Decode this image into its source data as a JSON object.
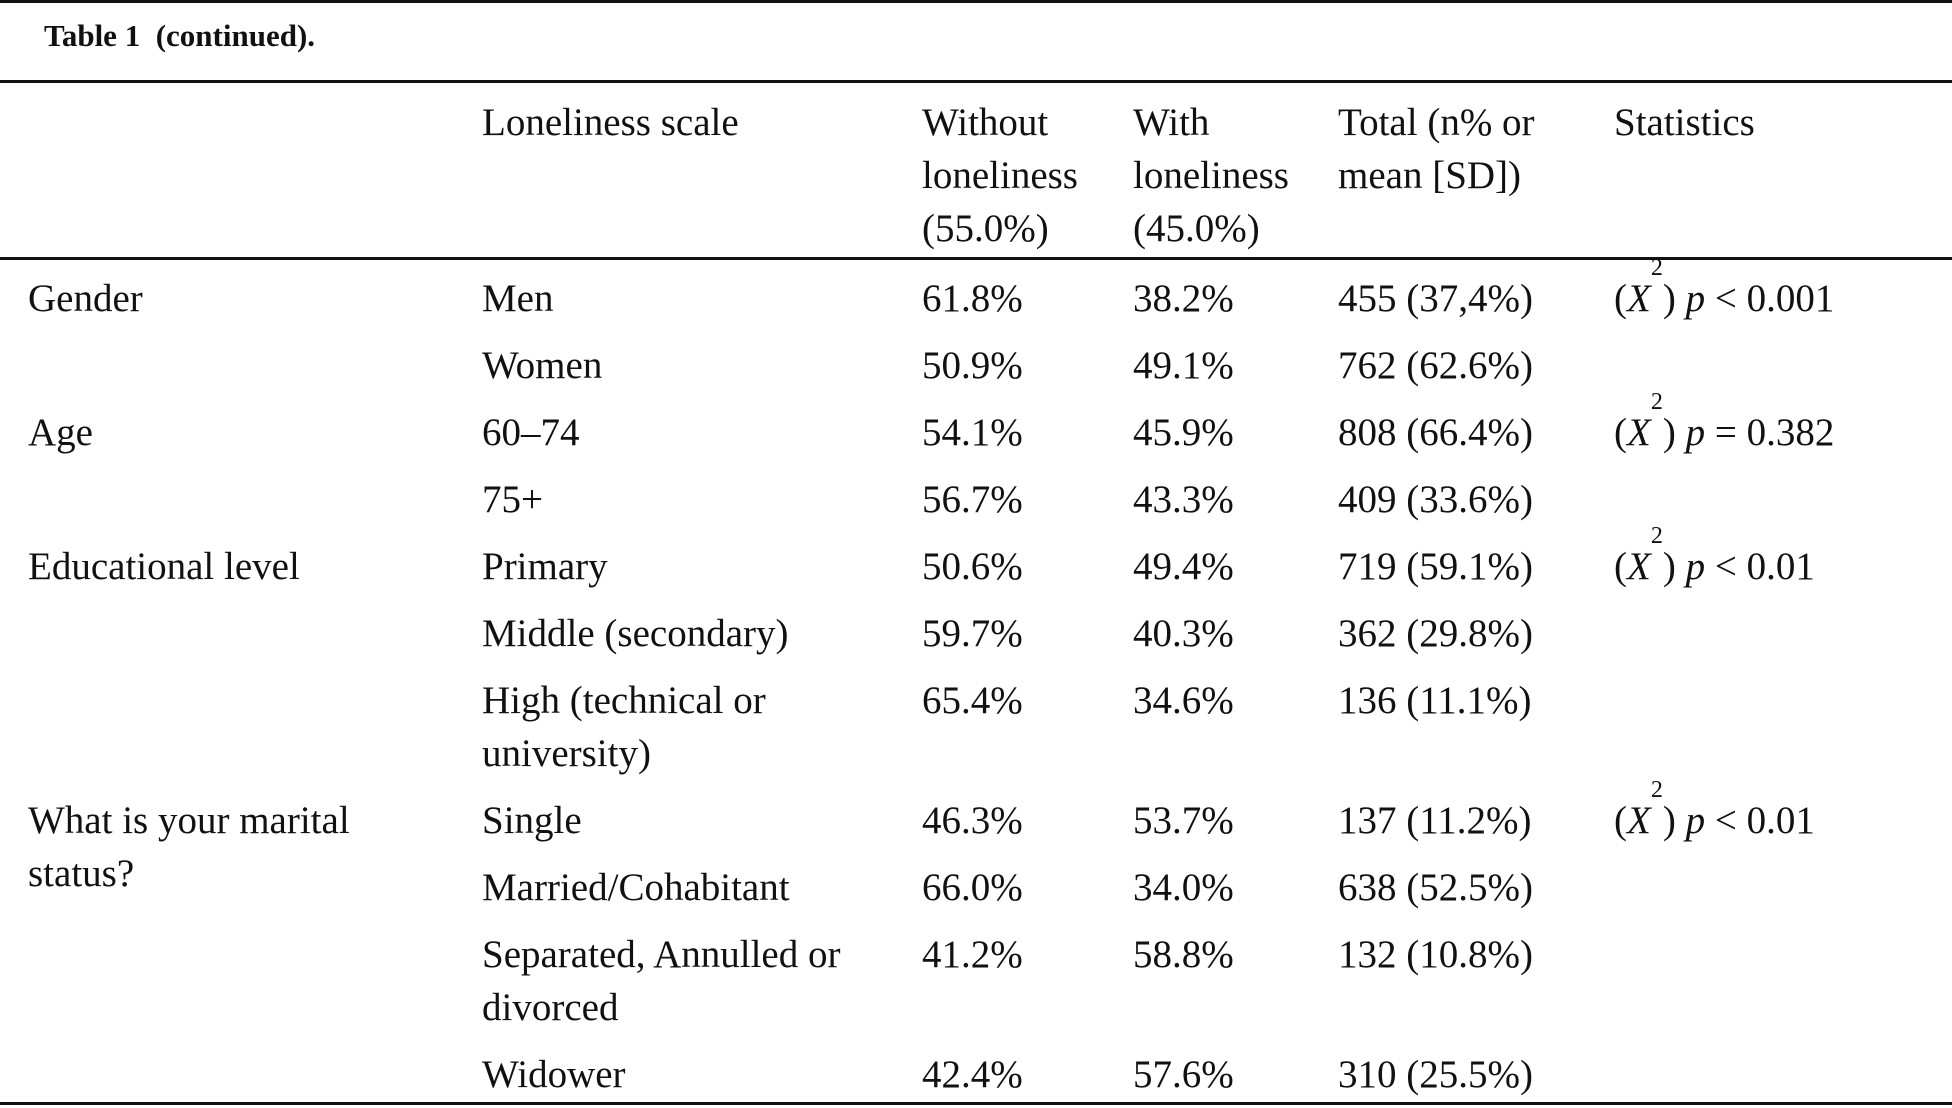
{
  "caption": {
    "label": "Table 1",
    "suffix": "(continued)."
  },
  "header": {
    "scale": "Loneliness scale",
    "without": [
      "Without",
      "loneliness",
      "(55.0%)"
    ],
    "with": [
      "With",
      "loneliness",
      "(45.0%)"
    ],
    "total": [
      "Total (n% or",
      "mean [SD])"
    ],
    "statistics": "Statistics"
  },
  "rows": [
    {
      "variable": [
        "Gender"
      ],
      "level": [
        "Men"
      ],
      "without": "61.8%",
      "with": "38.2%",
      "total": "455 (37,4%)",
      "stat": {
        "test": "X",
        "sup": "2",
        "p": "p",
        "op_value": " < 0.001"
      }
    },
    {
      "variable": [],
      "level": [
        "Women"
      ],
      "without": "50.9%",
      "with": "49.1%",
      "total": "762 (62.6%)"
    },
    {
      "variable": [
        "Age"
      ],
      "level": [
        "60–74"
      ],
      "without": "54.1%",
      "with": "45.9%",
      "total": "808 (66.4%)",
      "stat": {
        "test": "X",
        "sup": "2",
        "p": "p",
        "op_value": " = 0.382"
      }
    },
    {
      "variable": [],
      "level": [
        "75+"
      ],
      "without": "56.7%",
      "with": "43.3%",
      "total": "409 (33.6%)"
    },
    {
      "variable": [
        "Educational level"
      ],
      "level": [
        "Primary"
      ],
      "without": "50.6%",
      "with": "49.4%",
      "total": "719 (59.1%)",
      "stat": {
        "test": "X",
        "sup": "2",
        "p": "p",
        "op_value": " < 0.01"
      }
    },
    {
      "variable": [],
      "level": [
        "Middle (secondary)"
      ],
      "without": "59.7%",
      "with": "40.3%",
      "total": "362 (29.8%)"
    },
    {
      "variable": [],
      "level": [
        "High (technical or",
        "university)"
      ],
      "without": "65.4%",
      "with": "34.6%",
      "total": "136 (11.1%)"
    },
    {
      "variable": [
        "What is your marital",
        "status?"
      ],
      "level": [
        "Single"
      ],
      "without": "46.3%",
      "with": "53.7%",
      "total": "137 (11.2%)",
      "stat": {
        "test": "X",
        "sup": "2",
        "p": "p",
        "op_value": " < 0.01"
      }
    },
    {
      "variable": [],
      "level": [
        "Married/Cohabitant"
      ],
      "without": "66.0%",
      "with": "34.0%",
      "total": "638 (52.5%)"
    },
    {
      "variable": [],
      "level": [
        "Separated, Annulled or",
        "divorced"
      ],
      "without": "41.2%",
      "with": "58.8%",
      "total": "132 (10.8%)"
    },
    {
      "variable": [],
      "level": [
        "Widower"
      ],
      "without": "42.4%",
      "with": "57.6%",
      "total": "310 (25.5%)"
    }
  ]
}
